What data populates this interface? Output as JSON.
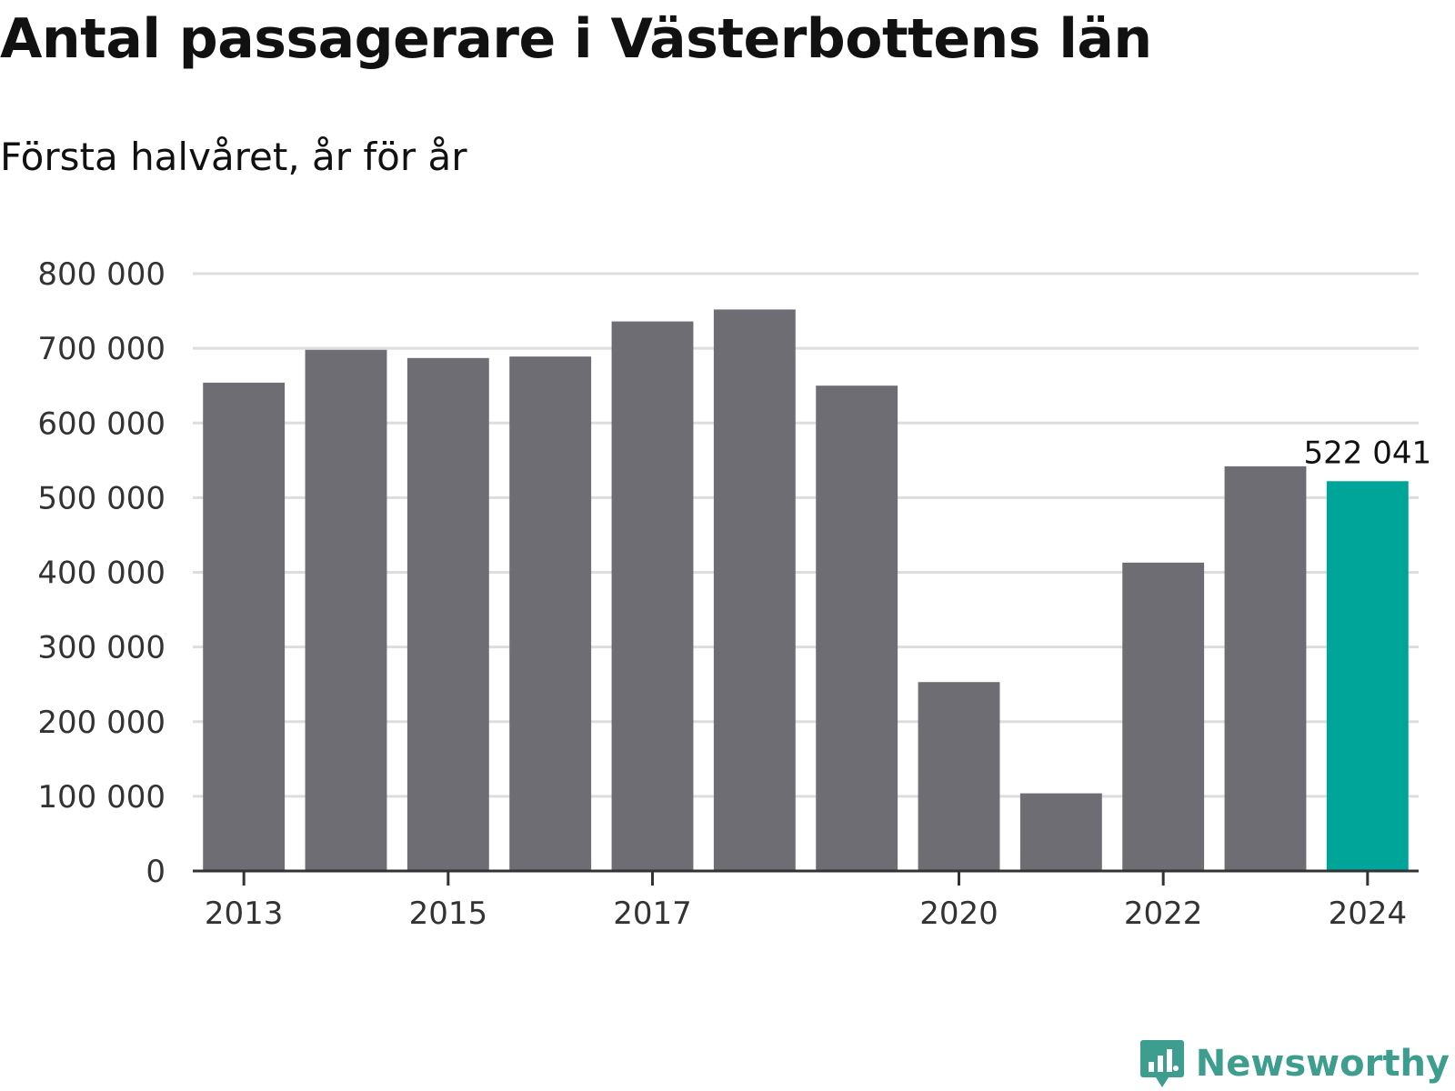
{
  "header": {
    "title": "Antal passagerare i Västerbottens län",
    "subtitle": "Första halvåret, år för år"
  },
  "colors": {
    "bar": "#6e6d74",
    "highlight": "#00a59a",
    "grid": "#dddddd",
    "axis": "#333333",
    "brand": "#3d9e8f"
  },
  "brand": {
    "name": "Newsworthy",
    "icon": "bar-chart-speech-bubble-icon"
  },
  "chart_data": {
    "type": "bar",
    "categories": [
      "2013",
      "2014",
      "2015",
      "2016",
      "2017",
      "2018",
      "2019",
      "2020",
      "2021",
      "2022",
      "2023",
      "2024"
    ],
    "values": [
      654000,
      698000,
      687000,
      689000,
      736000,
      752000,
      650000,
      253000,
      104000,
      413000,
      542000,
      522041
    ],
    "highlight_index": 11,
    "data_labels": [
      {
        "index": 11,
        "text": "522 041"
      }
    ],
    "ylim": [
      0,
      800000
    ],
    "yticks": [
      0,
      100000,
      200000,
      300000,
      400000,
      500000,
      600000,
      700000,
      800000
    ],
    "ytick_labels": [
      "0",
      "100 000",
      "200 000",
      "300 000",
      "400 000",
      "500 000",
      "600 000",
      "700 000",
      "800 000"
    ],
    "xticks": [
      "2013",
      "2015",
      "2017",
      "2020",
      "2022",
      "2024"
    ],
    "grid": "horizontal",
    "legend": "none",
    "xlabel": "",
    "ylabel": ""
  }
}
